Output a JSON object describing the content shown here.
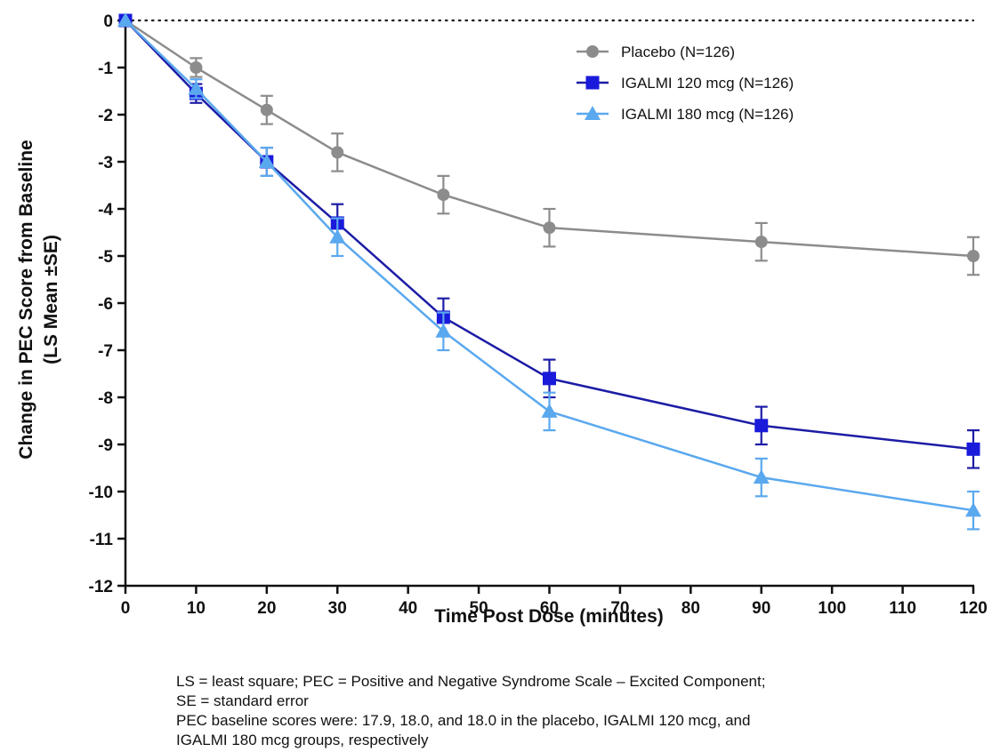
{
  "chart_data": {
    "type": "line",
    "title": "",
    "xlabel": "Time Post Dose (minutes)",
    "ylabel_lines": [
      "Change in PEC Score from Baseline",
      "(LS Mean ±SE)"
    ],
    "x": [
      0,
      10,
      20,
      30,
      45,
      60,
      90,
      120
    ],
    "xlim": [
      0,
      120
    ],
    "ylim": [
      -12,
      0
    ],
    "xticks": [
      0,
      10,
      20,
      30,
      40,
      50,
      60,
      70,
      80,
      90,
      100,
      110,
      120
    ],
    "yticks": [
      0,
      -1,
      -2,
      -3,
      -4,
      -5,
      -6,
      -7,
      -8,
      -9,
      -10,
      -11,
      -12
    ],
    "reference_line": {
      "y": 0,
      "style": "dotted"
    },
    "legend_position": "top-right",
    "grid": false,
    "series": [
      {
        "name": "Placebo (N=126)",
        "color": "#8c8c8c",
        "marker": "circle",
        "values": [
          0,
          -1.0,
          -1.9,
          -2.8,
          -3.7,
          -4.4,
          -4.7,
          -5.0
        ],
        "se": [
          0,
          0.2,
          0.3,
          0.4,
          0.4,
          0.4,
          0.4,
          0.4
        ]
      },
      {
        "name": "IGALMI 120 mcg (N=126)",
        "color": "#1a1adb",
        "line_color": "#1c1ca6",
        "marker": "square",
        "values": [
          0,
          -1.55,
          -3.0,
          -4.3,
          -6.3,
          -7.6,
          -8.6,
          -9.1
        ],
        "se": [
          0,
          0.2,
          0.3,
          0.4,
          0.4,
          0.4,
          0.4,
          0.4
        ]
      },
      {
        "name": "IGALMI 180 mcg (N=126)",
        "color": "#5aa8ee",
        "line_color": "#5aa8ee",
        "marker": "triangle",
        "values": [
          0,
          -1.45,
          -3.0,
          -4.6,
          -6.6,
          -8.3,
          -9.7,
          -10.4
        ],
        "se": [
          0,
          0.2,
          0.3,
          0.4,
          0.4,
          0.4,
          0.4,
          0.4
        ]
      }
    ]
  },
  "footnote": {
    "line1": "LS = least square; PEC = Positive and Negative Syndrome Scale – Excited Component;",
    "line2": "SE = standard error",
    "line3": "PEC baseline scores were: 17.9, 18.0, and 18.0 in the placebo, IGALMI 120 mcg, and",
    "line4": "IGALMI 180 mcg groups, respectively"
  }
}
